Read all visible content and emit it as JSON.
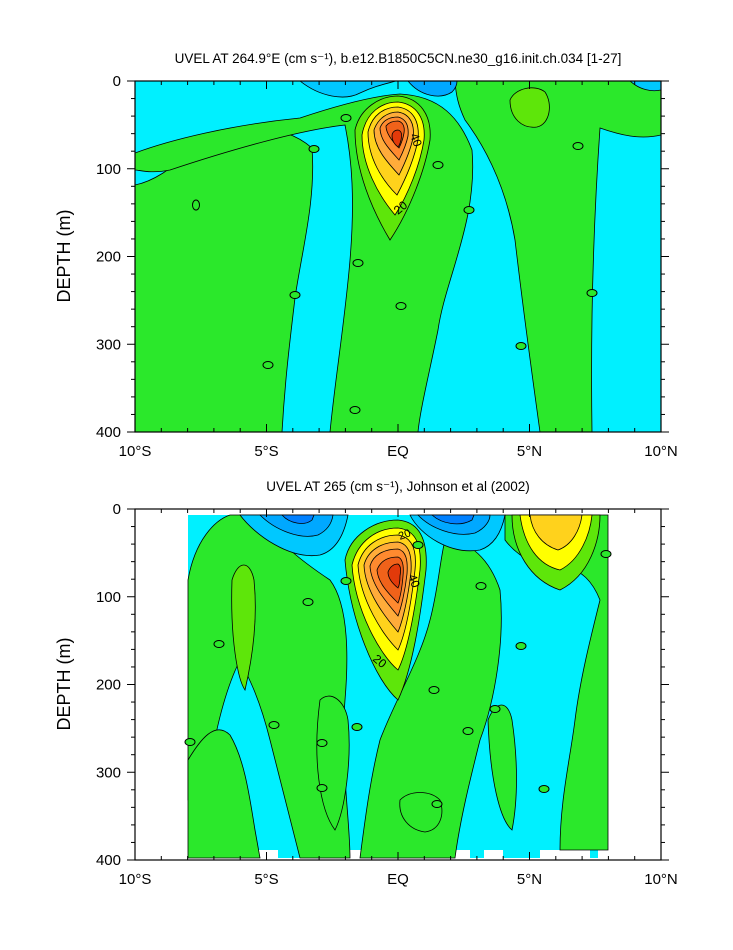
{
  "chart_data": [
    {
      "type": "contour",
      "title": "UVEL AT 264.9°E (cm s⁻¹), b.e12.B1850C5CN.ne30_g16.init.ch.034 [1-27]",
      "ylabel": "DEPTH (m)",
      "xlabel": "",
      "x_ticks": [
        "10°S",
        "5°S",
        "EQ",
        "5°N",
        "10°N"
      ],
      "x_tick_values": [
        -10,
        -5,
        0,
        5,
        10
      ],
      "y_ticks": [
        "0",
        "100",
        "200",
        "300",
        "400"
      ],
      "y_tick_values": [
        0,
        100,
        200,
        300,
        400
      ],
      "xlim": [
        -10,
        10
      ],
      "ylim": [
        400,
        0
      ],
      "y_inverted": true,
      "contour_interval": 10,
      "contour_labels": [
        {
          "text": "0",
          "x": -7.8,
          "y": 140
        },
        {
          "text": "0",
          "x": -3.2,
          "y": 77
        },
        {
          "text": "0",
          "x": -2.0,
          "y": 42
        },
        {
          "text": "0",
          "x": -1.5,
          "y": 205
        },
        {
          "text": "0",
          "x": -4.0,
          "y": 242
        },
        {
          "text": "0",
          "x": -5.0,
          "y": 322
        },
        {
          "text": "0",
          "x": -1.7,
          "y": 373
        },
        {
          "text": "0",
          "x": 0.1,
          "y": 255
        },
        {
          "text": "0",
          "x": 1.5,
          "y": 92
        },
        {
          "text": "0",
          "x": 2.7,
          "y": 145
        },
        {
          "text": "0",
          "x": 4.6,
          "y": 300
        },
        {
          "text": "0",
          "x": 6.9,
          "y": 72
        },
        {
          "text": "0",
          "x": 7.5,
          "y": 240
        },
        {
          "text": "40",
          "x": 0.6,
          "y": 62
        },
        {
          "text": "20",
          "x": 0.2,
          "y": 145
        }
      ],
      "max_core": {
        "x": -0.1,
        "y": 72,
        "approx_value": 70
      },
      "fill_colors": [
        "#00f0ff",
        "#00e6d6",
        "#2be82b",
        "#5ee60a",
        "#ffff00",
        "#ffd21c",
        "#ffac3a",
        "#ff8a2f",
        "#f0621a",
        "#e23a0a"
      ]
    },
    {
      "type": "contour",
      "title": "UVEL AT 265 (cm s⁻¹), Johnson et al (2002)",
      "ylabel": "DEPTH (m)",
      "xlabel": "",
      "x_ticks": [
        "10°S",
        "5°S",
        "EQ",
        "5°N",
        "10°N"
      ],
      "x_tick_values": [
        -10,
        -5,
        0,
        5,
        10
      ],
      "y_ticks": [
        "0",
        "100",
        "200",
        "300",
        "400"
      ],
      "y_tick_values": [
        0,
        100,
        200,
        300,
        400
      ],
      "xlim": [
        -10,
        10
      ],
      "ylim": [
        400,
        0
      ],
      "y_inverted": true,
      "data_extent_x": [
        -8,
        8
      ],
      "contour_interval": 10,
      "contour_labels": [
        {
          "text": "0",
          "x": -8.1,
          "y": 265
        },
        {
          "text": "0",
          "x": -6.7,
          "y": 152
        },
        {
          "text": "0",
          "x": -4.8,
          "y": 245
        },
        {
          "text": "0",
          "x": -3.5,
          "y": 103
        },
        {
          "text": "0",
          "x": -2.0,
          "y": 80
        },
        {
          "text": "0",
          "x": -1.6,
          "y": 247
        },
        {
          "text": "0",
          "x": -2.9,
          "y": 265
        },
        {
          "text": "0",
          "x": -2.9,
          "y": 315
        },
        {
          "text": "0",
          "x": 0.7,
          "y": 40
        },
        {
          "text": "0",
          "x": 1.3,
          "y": 205
        },
        {
          "text": "0",
          "x": 1.4,
          "y": 335
        },
        {
          "text": "0",
          "x": 2.6,
          "y": 252
        },
        {
          "text": "0",
          "x": 3.1,
          "y": 85
        },
        {
          "text": "0",
          "x": 3.6,
          "y": 227
        },
        {
          "text": "0",
          "x": 4.8,
          "y": 153
        },
        {
          "text": "0",
          "x": 5.6,
          "y": 317
        },
        {
          "text": "0",
          "x": 7.9,
          "y": 50
        },
        {
          "text": "20",
          "x": 0.2,
          "y": 35
        },
        {
          "text": "40",
          "x": 0.7,
          "y": 70
        },
        {
          "text": "20",
          "x": -0.8,
          "y": 172
        }
      ],
      "max_core": {
        "x": -0.1,
        "y": 66,
        "approx_value": 80
      }
    }
  ]
}
